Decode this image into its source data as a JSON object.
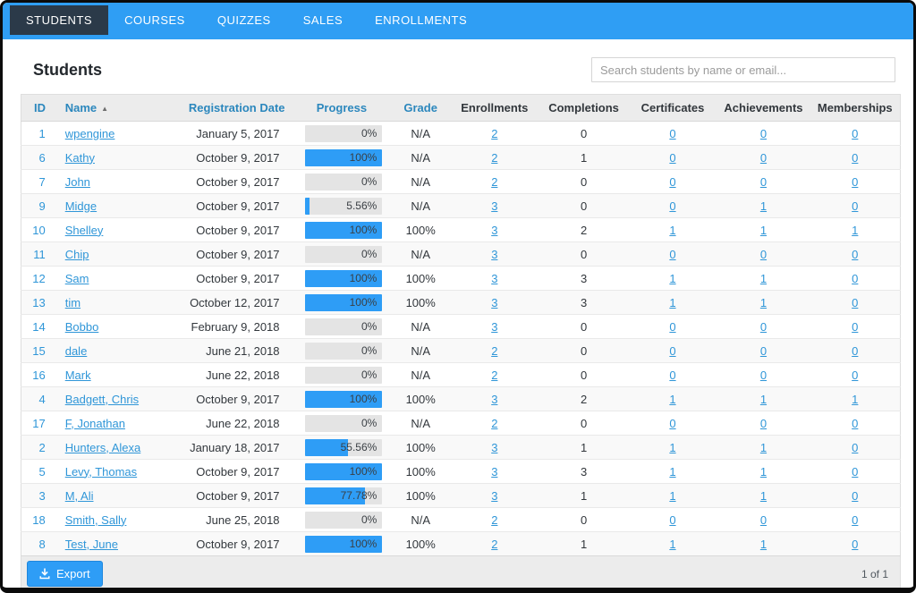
{
  "nav": {
    "tabs": [
      {
        "label": "STUDENTS",
        "active": true
      },
      {
        "label": "COURSES",
        "active": false
      },
      {
        "label": "QUIZZES",
        "active": false
      },
      {
        "label": "SALES",
        "active": false
      },
      {
        "label": "ENROLLMENTS",
        "active": false
      }
    ]
  },
  "header": {
    "title": "Students",
    "search_placeholder": "Search students by name or email..."
  },
  "table": {
    "columns": [
      "ID",
      "Name",
      "Registration Date",
      "Progress",
      "Grade",
      "Enrollments",
      "Completions",
      "Certificates",
      "Achievements",
      "Memberships"
    ],
    "sort_column": "Name",
    "sort_indicator": "▲",
    "rows": [
      {
        "id": "1",
        "name": "wpengine",
        "registration_date": "January 5, 2017",
        "progress_label": "0%",
        "progress_pct": 0,
        "grade": "N/A",
        "enrollments": "2",
        "completions": "0",
        "certificates": "0",
        "achievements": "0",
        "memberships": "0"
      },
      {
        "id": "6",
        "name": "Kathy",
        "registration_date": "October 9, 2017",
        "progress_label": "100%",
        "progress_pct": 100,
        "grade": "N/A",
        "enrollments": "2",
        "completions": "1",
        "certificates": "0",
        "achievements": "0",
        "memberships": "0"
      },
      {
        "id": "7",
        "name": "John",
        "registration_date": "October 9, 2017",
        "progress_label": "0%",
        "progress_pct": 0,
        "grade": "N/A",
        "enrollments": "2",
        "completions": "0",
        "certificates": "0",
        "achievements": "0",
        "memberships": "0"
      },
      {
        "id": "9",
        "name": "Midge",
        "registration_date": "October 9, 2017",
        "progress_label": "5.56%",
        "progress_pct": 5.56,
        "grade": "N/A",
        "enrollments": "3",
        "completions": "0",
        "certificates": "0",
        "achievements": "1",
        "memberships": "0"
      },
      {
        "id": "10",
        "name": "Shelley",
        "registration_date": "October 9, 2017",
        "progress_label": "100%",
        "progress_pct": 100,
        "grade": "100%",
        "enrollments": "3",
        "completions": "2",
        "certificates": "1",
        "achievements": "1",
        "memberships": "1"
      },
      {
        "id": "11",
        "name": "Chip",
        "registration_date": "October 9, 2017",
        "progress_label": "0%",
        "progress_pct": 0,
        "grade": "N/A",
        "enrollments": "3",
        "completions": "0",
        "certificates": "0",
        "achievements": "0",
        "memberships": "0"
      },
      {
        "id": "12",
        "name": "Sam",
        "registration_date": "October 9, 2017",
        "progress_label": "100%",
        "progress_pct": 100,
        "grade": "100%",
        "enrollments": "3",
        "completions": "3",
        "certificates": "1",
        "achievements": "1",
        "memberships": "0"
      },
      {
        "id": "13",
        "name": "tim",
        "registration_date": "October 12, 2017",
        "progress_label": "100%",
        "progress_pct": 100,
        "grade": "100%",
        "enrollments": "3",
        "completions": "3",
        "certificates": "1",
        "achievements": "1",
        "memberships": "0"
      },
      {
        "id": "14",
        "name": "Bobbo",
        "registration_date": "February 9, 2018",
        "progress_label": "0%",
        "progress_pct": 0,
        "grade": "N/A",
        "enrollments": "3",
        "completions": "0",
        "certificates": "0",
        "achievements": "0",
        "memberships": "0"
      },
      {
        "id": "15",
        "name": "dale",
        "registration_date": "June 21, 2018",
        "progress_label": "0%",
        "progress_pct": 0,
        "grade": "N/A",
        "enrollments": "2",
        "completions": "0",
        "certificates": "0",
        "achievements": "0",
        "memberships": "0"
      },
      {
        "id": "16",
        "name": "Mark",
        "registration_date": "June 22, 2018",
        "progress_label": "0%",
        "progress_pct": 0,
        "grade": "N/A",
        "enrollments": "2",
        "completions": "0",
        "certificates": "0",
        "achievements": "0",
        "memberships": "0"
      },
      {
        "id": "4",
        "name": "Badgett, Chris",
        "registration_date": "October 9, 2017",
        "progress_label": "100%",
        "progress_pct": 100,
        "grade": "100%",
        "enrollments": "3",
        "completions": "2",
        "certificates": "1",
        "achievements": "1",
        "memberships": "1"
      },
      {
        "id": "17",
        "name": "F, Jonathan",
        "registration_date": "June 22, 2018",
        "progress_label": "0%",
        "progress_pct": 0,
        "grade": "N/A",
        "enrollments": "2",
        "completions": "0",
        "certificates": "0",
        "achievements": "0",
        "memberships": "0"
      },
      {
        "id": "2",
        "name": "Hunters, Alexa",
        "registration_date": "January 18, 2017",
        "progress_label": "55.56%",
        "progress_pct": 55.56,
        "grade": "100%",
        "enrollments": "3",
        "completions": "1",
        "certificates": "1",
        "achievements": "1",
        "memberships": "0"
      },
      {
        "id": "5",
        "name": "Levy, Thomas",
        "registration_date": "October 9, 2017",
        "progress_label": "100%",
        "progress_pct": 100,
        "grade": "100%",
        "enrollments": "3",
        "completions": "3",
        "certificates": "1",
        "achievements": "1",
        "memberships": "0"
      },
      {
        "id": "3",
        "name": "M, Ali",
        "registration_date": "October 9, 2017",
        "progress_label": "77.78%",
        "progress_pct": 77.78,
        "grade": "100%",
        "enrollments": "3",
        "completions": "1",
        "certificates": "1",
        "achievements": "1",
        "memberships": "0"
      },
      {
        "id": "18",
        "name": "Smith, Sally",
        "registration_date": "June 25, 2018",
        "progress_label": "0%",
        "progress_pct": 0,
        "grade": "N/A",
        "enrollments": "2",
        "completions": "0",
        "certificates": "0",
        "achievements": "0",
        "memberships": "0"
      },
      {
        "id": "8",
        "name": "Test, June",
        "registration_date": "October 9, 2017",
        "progress_label": "100%",
        "progress_pct": 100,
        "grade": "100%",
        "enrollments": "2",
        "completions": "1",
        "certificates": "1",
        "achievements": "1",
        "memberships": "0"
      }
    ]
  },
  "footer": {
    "export_label": "Export",
    "page_info": "1 of 1"
  },
  "colors": {
    "accent_blue": "#2e9df6",
    "nav_blue": "#2f9ef4",
    "active_tab_dark": "#2b3a49",
    "header_link_blue": "#2b87bd",
    "table_link_blue": "#2f96d8",
    "header_bg": "#ececec",
    "zebra_row": "#f9f9f9",
    "progress_track": "#e4e4e4"
  }
}
